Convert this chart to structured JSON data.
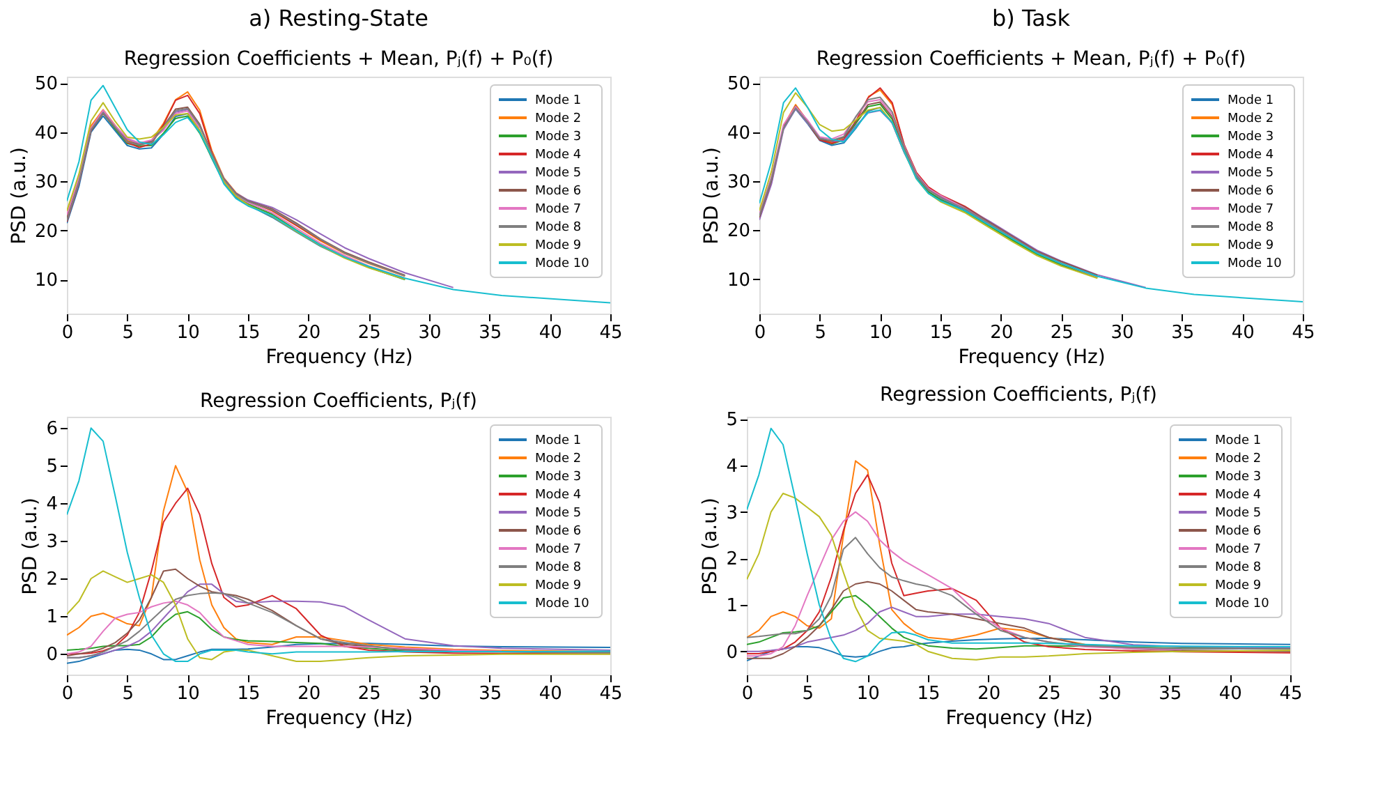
{
  "chart_data": [
    {
      "type": "line",
      "title": "a) Resting-State",
      "subtitle": "Regression Coefficients + Mean, Pⱼ(f) + P₀(f)",
      "xlabel": "Frequency (Hz)",
      "ylabel": "PSD (a.u.)",
      "xlim": [
        0,
        45
      ],
      "ylim": [
        3.1,
        51.3
      ],
      "xticks": [
        0,
        5,
        10,
        15,
        20,
        25,
        30,
        35,
        40,
        45
      ],
      "yticks": [
        10,
        20,
        30,
        40,
        50
      ],
      "grid": false,
      "legend": "top right",
      "x": [
        0,
        1,
        2,
        3,
        4,
        5,
        6,
        7,
        8,
        9,
        10,
        11,
        12,
        13,
        14,
        15,
        17,
        19,
        21,
        23,
        25,
        28,
        32,
        36,
        45
      ],
      "series": [
        {
          "name": "Mode 1",
          "color": "#1f77b4",
          "values": [
            21.5,
            29,
            40,
            43.3,
            40.3,
            37.3,
            36.6,
            36.8,
            39.6,
            43.2,
            43.8,
            40.3,
            34.7,
            29.7,
            26.8,
            25.2,
            22.7,
            19.7,
            16.8,
            14.5,
            12.6,
            10.2,
            null,
            null,
            null
          ]
        },
        {
          "name": "Mode 2",
          "color": "#ff7f0e",
          "values": [
            22.3,
            30.5,
            41.3,
            44.6,
            41.4,
            38.3,
            37.4,
            38.3,
            41.8,
            46.6,
            48.2,
            44.5,
            36.3,
            30.7,
            27.7,
            26.1,
            24,
            21,
            17.9,
            15.3,
            13.3,
            10.7,
            null,
            null,
            null
          ]
        },
        {
          "name": "Mode 3",
          "color": "#2ca02c",
          "values": [
            null,
            null,
            40.7,
            43.9,
            40.7,
            37.7,
            37.2,
            37.3,
            39.8,
            42.8,
            43.3,
            39.8,
            34.8,
            29.8,
            27,
            25.4,
            23.3,
            20.1,
            17.1,
            14.6,
            12.5,
            10,
            null,
            null,
            null
          ]
        },
        {
          "name": "Mode 4",
          "color": "#d62728",
          "values": [
            21.8,
            29.6,
            40.3,
            44.1,
            41.1,
            37.9,
            36.9,
            37.6,
            41.5,
            46.5,
            47.5,
            43.8,
            35.9,
            30.4,
            27.4,
            25.9,
            24.1,
            21.1,
            18.1,
            15.5,
            null,
            null,
            null,
            null,
            null
          ]
        },
        {
          "name": "Mode 5",
          "color": "#9467bd",
          "values": [
            22.1,
            29.8,
            40.6,
            44.2,
            41.2,
            38.6,
            37.7,
            38.2,
            40.7,
            44.1,
            44.6,
            41.2,
            35.7,
            30.6,
            27.6,
            26.2,
            24.7,
            22.2,
            19.3,
            16.5,
            14.3,
            11.4,
            8.4,
            null,
            null
          ]
        },
        {
          "name": "Mode 6",
          "color": "#8c564b",
          "values": [
            22.5,
            30.1,
            40.4,
            43.8,
            40.9,
            38.1,
            37.5,
            38.1,
            41.2,
            44.7,
            45.1,
            41.6,
            35.6,
            30.5,
            27.5,
            26,
            24.4,
            21.5,
            18.3,
            15.6,
            13.6,
            10.9,
            null,
            null,
            null
          ]
        },
        {
          "name": "Mode 7",
          "color": "#e377c2",
          "values": [
            23.2,
            30.8,
            40.8,
            44.5,
            41.3,
            38.8,
            37.8,
            38.4,
            40.4,
            43.8,
            44.3,
            40.8,
            null,
            30,
            27.3,
            25.7,
            23.6,
            20.5,
            17.4,
            14.9,
            12.8,
            10.3,
            null,
            null,
            null
          ]
        },
        {
          "name": "Mode 8",
          "color": "#7f7f7f",
          "values": [
            22,
            29.9,
            40.5,
            44,
            41,
            38,
            37.4,
            37.9,
            41,
            44.4,
            44.8,
            41.4,
            35.5,
            30.4,
            27.4,
            25.9,
            24.2,
            21.3,
            18.2,
            15.4,
            13.4,
            10.8,
            null,
            null,
            null
          ]
        },
        {
          "name": "Mode 9",
          "color": "#bcbd22",
          "values": [
            24,
            31.5,
            42.3,
            46,
            42.2,
            39,
            38.6,
            39,
            41,
            43.5,
            43.8,
            40.4,
            35,
            29.9,
            27,
            25.2,
            22.9,
            19.8,
            16.9,
            14.4,
            12.4,
            10.1,
            null,
            null,
            null
          ]
        },
        {
          "name": "Mode 10",
          "color": "#17becf",
          "values": [
            26,
            34,
            46.5,
            49.5,
            45,
            40.5,
            38,
            37.5,
            39.5,
            42,
            43,
            40,
            35,
            29.5,
            26.5,
            25,
            23,
            20,
            17,
            14.6,
            12.7,
            10.3,
            8,
            6.8,
            5.3
          ]
        }
      ]
    },
    {
      "type": "line",
      "title": "b) Task",
      "subtitle": "Regression Coefficients + Mean, Pⱼ(f) + P₀(f)",
      "xlabel": "Frequency (Hz)",
      "ylabel": "PSD (a.u.)",
      "xlim": [
        0,
        45
      ],
      "ylim": [
        3.0,
        51.3
      ],
      "xticks": [
        0,
        5,
        10,
        15,
        20,
        25,
        30,
        35,
        40,
        45
      ],
      "yticks": [
        10,
        20,
        30,
        40,
        50
      ],
      "grid": false,
      "legend": "top right",
      "x": [
        0,
        1,
        2,
        3,
        4,
        5,
        6,
        7,
        8,
        9,
        10,
        11,
        12,
        13,
        14,
        15,
        17,
        19,
        21,
        23,
        25,
        28,
        32,
        36,
        45
      ],
      "series": [
        {
          "name": "Mode 1",
          "color": "#1f77b4",
          "values": [
            null,
            null,
            40.7,
            44.7,
            41.7,
            38.3,
            37.3,
            37.8,
            40.8,
            44.3,
            45,
            41.8,
            35.8,
            30.8,
            27.8,
            26.3,
            24.1,
            21.1,
            18.1,
            15.2,
            13,
            10.4,
            null,
            null,
            null
          ]
        },
        {
          "name": "Mode 2",
          "color": "#ff7f0e",
          "values": [
            null,
            null,
            41.3,
            45.6,
            42.2,
            38.7,
            37.9,
            38.6,
            null,
            47.2,
            48.6,
            45.6,
            37.2,
            null,
            null,
            null,
            null,
            null,
            null,
            null,
            null,
            null,
            null,
            null,
            null
          ]
        },
        {
          "name": "Mode 3",
          "color": "#2ca02c",
          "values": [
            null,
            null,
            null,
            null,
            null,
            38.6,
            37.6,
            38.4,
            41.8,
            45.2,
            45.7,
            42.6,
            36.1,
            30.9,
            27.9,
            26.2,
            23.9,
            20.9,
            17.9,
            15.1,
            12.9,
            10.4,
            null,
            null,
            null
          ]
        },
        {
          "name": "Mode 4",
          "color": "#d62728",
          "values": [
            22.4,
            29.8,
            40.9,
            44.9,
            41.9,
            38.4,
            37.7,
            38.5,
            42.3,
            47,
            49,
            46,
            37.4,
            31.8,
            28.8,
            27.2,
            24.9,
            21.8,
            18.8,
            null,
            null,
            null,
            null,
            null,
            null
          ]
        },
        {
          "name": "Mode 5",
          "color": "#9467bd",
          "values": [
            22.1,
            29.4,
            40.5,
            44.8,
            41.8,
            38.9,
            38.1,
            38.3,
            41.3,
            43.9,
            44.4,
            41.9,
            35.9,
            31.1,
            28.2,
            26.7,
            24.6,
            21.9,
            18.9,
            15.9,
            13.7,
            10.9,
            8.3,
            null,
            null
          ]
        },
        {
          "name": "Mode 6",
          "color": "#8c564b",
          "values": [
            22.6,
            30.1,
            41.2,
            45.3,
            42.3,
            38.5,
            38.2,
            38.9,
            42.1,
            45.6,
            46.1,
            43.1,
            36.7,
            31.4,
            28.4,
            27,
            24.7,
            21.7,
            18.7,
            15.7,
            13.6,
            10.8,
            null,
            null,
            null
          ]
        },
        {
          "name": "Mode 7",
          "color": "#e377c2",
          "values": [
            23.3,
            30.9,
            41.5,
            45.2,
            42.4,
            39,
            38.6,
            39.6,
            43.1,
            46.2,
            46.6,
            43.6,
            37.1,
            31.5,
            28.5,
            27.1,
            24.5,
            21.4,
            18.4,
            15.4,
            13.2,
            10.5,
            null,
            null,
            null
          ]
        },
        {
          "name": "Mode 8",
          "color": "#7f7f7f",
          "values": [
            22.9,
            30.4,
            40.8,
            44.9,
            42,
            38.7,
            38.3,
            39.1,
            43.2,
            46.6,
            47.1,
            44.1,
            36.9,
            31.3,
            28.3,
            26.6,
            24.4,
            21.4,
            18.4,
            15.5,
            13.3,
            10.6,
            null,
            null,
            null
          ]
        },
        {
          "name": "Mode 9",
          "color": "#bcbd22",
          "values": [
            24,
            32,
            44,
            48,
            45,
            41.5,
            40.2,
            40.5,
            42.5,
            44.5,
            45,
            42,
            36,
            30.5,
            27.5,
            25.8,
            23.6,
            20.6,
            17.6,
            14.8,
            12.7,
            10.2,
            null,
            null,
            null
          ]
        },
        {
          "name": "Mode 10",
          "color": "#17becf",
          "values": [
            25.5,
            34,
            46,
            49,
            45,
            40.5,
            38.5,
            38,
            41,
            44,
            44.5,
            42,
            36,
            30.5,
            27.5,
            26,
            24,
            21.1,
            18.2,
            15.3,
            13.2,
            10.6,
            8.2,
            6.9,
            5.4
          ]
        }
      ]
    },
    {
      "type": "line",
      "title": "Regression Coefficients, Pⱼ(f)",
      "xlabel": "Frequency (Hz)",
      "ylabel": "PSD (a.u.)",
      "xlim": [
        0,
        45
      ],
      "ylim": [
        -0.55,
        6.3
      ],
      "xticks": [
        0,
        5,
        10,
        15,
        20,
        25,
        30,
        35,
        40,
        45
      ],
      "yticks": [
        0,
        1,
        2,
        3,
        4,
        5,
        6
      ],
      "grid": false,
      "legend": "top right",
      "x": [
        0,
        1,
        2,
        3,
        4,
        5,
        6,
        7,
        8,
        9,
        10,
        11,
        12,
        13,
        14,
        15,
        17,
        19,
        21,
        23,
        25,
        28,
        32,
        36,
        45
      ],
      "series": [
        {
          "name": "Mode 1",
          "color": "#1f77b4",
          "values": [
            -0.25,
            -0.2,
            -0.1,
            0,
            0.1,
            0.12,
            0.1,
            0,
            -0.15,
            -0.15,
            -0.05,
            0.05,
            0.12,
            0.12,
            0.12,
            0.13,
            0.18,
            0.25,
            0.27,
            0.28,
            0.28,
            0.25,
            0.21,
            0.19,
            0.17
          ]
        },
        {
          "name": "Mode 2",
          "color": "#ff7f0e",
          "values": [
            0.5,
            0.7,
            1.0,
            1.08,
            0.95,
            0.8,
            0.75,
            1.5,
            3.8,
            5.0,
            4.3,
            2.5,
            1.3,
            0.7,
            0.4,
            0.3,
            0.25,
            0.45,
            0.45,
            0.35,
            0.25,
            0.18,
            0.12,
            0.09,
            0.06
          ]
        },
        {
          "name": "Mode 3",
          "color": "#2ca02c",
          "values": [
            0.1,
            0.12,
            0.15,
            0.2,
            0.22,
            0.22,
            0.25,
            0.45,
            0.8,
            1.05,
            1.12,
            0.95,
            0.65,
            0.45,
            0.38,
            0.35,
            0.33,
            0.3,
            0.28,
            0.2,
            0.15,
            0.08,
            null,
            null,
            null
          ]
        },
        {
          "name": "Mode 4",
          "color": "#d62728",
          "values": [
            0,
            0,
            0.02,
            0.08,
            0.2,
            0.5,
            1.1,
            2.2,
            3.5,
            4.0,
            4.4,
            3.7,
            2.4,
            1.5,
            1.25,
            1.3,
            1.55,
            1.2,
            0.5,
            0.2,
            0.1,
            0.05,
            0.02,
            0.01,
            0
          ]
        },
        {
          "name": "Mode 5",
          "color": "#9467bd",
          "values": [
            -0.1,
            -0.1,
            -0.05,
            0,
            0.1,
            0.2,
            0.35,
            0.6,
            0.95,
            1.3,
            1.65,
            1.85,
            1.85,
            1.6,
            1.4,
            1.35,
            1.4,
            1.4,
            1.38,
            1.25,
            0.9,
            0.4,
            0.22,
            0.15,
            0.1
          ]
        },
        {
          "name": "Mode 6",
          "color": "#8c564b",
          "values": [
            -0.05,
            0,
            0.05,
            0.15,
            0.3,
            0.55,
            0.9,
            1.5,
            2.2,
            2.25,
            2.0,
            1.8,
            1.65,
            1.6,
            1.55,
            1.45,
            1.15,
            0.75,
            0.4,
            0.25,
            0.2,
            0.12,
            0.08,
            0.06,
            0.04
          ]
        },
        {
          "name": "Mode 7",
          "color": "#e377c2",
          "values": [
            0,
            0.05,
            0.2,
            0.6,
            0.95,
            1.05,
            1.1,
            1.25,
            1.35,
            1.4,
            1.3,
            1.1,
            0.75,
            0.45,
            0.35,
            0.25,
            0.2,
            0.2,
            0.2,
            0.2,
            0.18,
            0.15,
            0.1,
            0.07,
            null
          ]
        },
        {
          "name": "Mode 8",
          "color": "#7f7f7f",
          "values": [
            -0.1,
            -0.1,
            -0.05,
            0.05,
            0.2,
            0.35,
            0.6,
            0.9,
            1.2,
            1.45,
            1.55,
            1.6,
            1.62,
            1.6,
            1.5,
            1.35,
            1.1,
            0.75,
            0.4,
            0.3,
            0.22,
            0.1,
            0.06,
            0.05,
            0.03
          ]
        },
        {
          "name": "Mode 9",
          "color": "#bcbd22",
          "values": [
            1.05,
            1.4,
            2.0,
            2.2,
            2.05,
            1.9,
            2.0,
            2.1,
            1.9,
            1.3,
            0.4,
            -0.1,
            -0.15,
            0.05,
            0.1,
            0.1,
            -0.05,
            -0.2,
            -0.2,
            -0.15,
            -0.1,
            -0.05,
            -0.03,
            -0.01,
            -0.01
          ]
        },
        {
          "name": "Mode 10",
          "color": "#17becf",
          "values": [
            3.7,
            4.6,
            6.0,
            5.65,
            4.2,
            2.7,
            1.5,
            0.5,
            0,
            -0.2,
            -0.2,
            0,
            0.1,
            0.1,
            0.1,
            0.05,
            0,
            0.05,
            0.05,
            0.05,
            0.05,
            0.06,
            0.06,
            0.06,
            0.07
          ]
        }
      ]
    },
    {
      "type": "line",
      "title": "Regression Coefficients, Pⱼ(f)",
      "xlabel": "Frequency (Hz)",
      "ylabel": "PSD (a.u.)",
      "xlim": [
        0,
        45
      ],
      "ylim": [
        -0.5,
        5.05
      ],
      "xticks": [
        0,
        5,
        10,
        15,
        20,
        25,
        30,
        35,
        40,
        45
      ],
      "yticks": [
        0,
        1,
        2,
        3,
        4,
        5
      ],
      "grid": false,
      "legend": "top right",
      "x": [
        0,
        1,
        2,
        3,
        4,
        5,
        6,
        7,
        8,
        9,
        10,
        11,
        12,
        13,
        14,
        15,
        17,
        19,
        21,
        23,
        25,
        28,
        32,
        36,
        45
      ],
      "series": [
        {
          "name": "Mode 1",
          "color": "#1f77b4",
          "values": [
            -0.2,
            -0.1,
            0,
            0.05,
            0.1,
            0.1,
            0.08,
            0,
            -0.1,
            -0.12,
            -0.1,
            0,
            0.08,
            0.1,
            0.15,
            0.18,
            0.22,
            0.25,
            0.27,
            0.28,
            0.28,
            0.25,
            0.2,
            0.17,
            0.15
          ]
        },
        {
          "name": "Mode 2",
          "color": "#ff7f0e",
          "values": [
            0.3,
            0.45,
            0.75,
            0.85,
            0.75,
            0.55,
            0.5,
            0.7,
            2.5,
            4.1,
            3.9,
            2.3,
            0.9,
            0.6,
            0.4,
            0.3,
            0.25,
            0.35,
            0.5,
            0.45,
            0.3,
            0.15,
            0.08,
            null,
            null
          ]
        },
        {
          "name": "Mode 3",
          "color": "#2ca02c",
          "values": [
            0.15,
            0.2,
            0.3,
            0.4,
            0.42,
            0.45,
            0.55,
            0.85,
            1.15,
            1.2,
            1.0,
            0.75,
            0.5,
            0.3,
            0.2,
            0.12,
            0.07,
            0.05,
            0.08,
            0.12,
            0.12,
            0.11,
            0.09,
            0.07,
            0.06
          ]
        },
        {
          "name": "Mode 4",
          "color": "#d62728",
          "values": [
            -0.05,
            -0.05,
            0,
            0.05,
            0.2,
            0.45,
            0.85,
            1.6,
            2.6,
            3.4,
            3.8,
            3.2,
            1.9,
            1.2,
            1.25,
            1.3,
            1.35,
            1.1,
            0.5,
            0.2,
            0.1,
            0.04,
            0.01,
            -0.01,
            -0.03
          ]
        },
        {
          "name": "Mode 5",
          "color": "#9467bd",
          "values": [
            0,
            0,
            0.02,
            0.05,
            0.1,
            0.2,
            0.25,
            0.3,
            0.35,
            0.45,
            0.6,
            0.85,
            0.95,
            0.85,
            0.75,
            0.75,
            0.8,
            0.8,
            0.75,
            0.7,
            0.6,
            0.3,
            0.14,
            0.1,
            0.08
          ]
        },
        {
          "name": "Mode 6",
          "color": "#8c564b",
          "values": [
            -0.15,
            -0.15,
            -0.15,
            -0.05,
            0.1,
            0.3,
            0.55,
            0.9,
            1.3,
            1.45,
            1.5,
            1.45,
            1.3,
            1.1,
            0.9,
            0.85,
            0.8,
            0.7,
            0.6,
            0.5,
            0.3,
            0.13,
            0.05,
            0.02,
            0
          ]
        },
        {
          "name": "Mode 7",
          "color": "#e377c2",
          "values": [
            -0.1,
            -0.1,
            -0.05,
            0.1,
            0.55,
            1.2,
            1.8,
            2.4,
            2.8,
            3.0,
            2.8,
            2.4,
            2.15,
            1.95,
            1.8,
            1.65,
            1.35,
            0.85,
            0.5,
            0.3,
            0.2,
            0.1,
            0.06,
            0.04,
            null
          ]
        },
        {
          "name": "Mode 8",
          "color": "#7f7f7f",
          "values": [
            0.3,
            0.32,
            0.35,
            0.38,
            0.38,
            0.45,
            0.7,
            1.2,
            2.2,
            2.45,
            2.1,
            1.8,
            1.6,
            1.52,
            1.45,
            1.4,
            1.2,
            0.8,
            0.45,
            0.3,
            0.2,
            0.12,
            0.08,
            0.06,
            0.05
          ]
        },
        {
          "name": "Mode 9",
          "color": "#bcbd22",
          "values": [
            1.55,
            2.1,
            3.0,
            3.4,
            3.3,
            3.1,
            2.9,
            2.5,
            1.7,
            0.95,
            0.45,
            0.28,
            0.25,
            0.22,
            0.15,
            0,
            -0.15,
            -0.18,
            -0.12,
            -0.12,
            -0.1,
            -0.05,
            -0.02,
            0,
            0.02
          ]
        },
        {
          "name": "Mode 10",
          "color": "#17becf",
          "values": [
            3.05,
            3.8,
            4.8,
            4.45,
            3.3,
            2.1,
            1.0,
            0.25,
            -0.15,
            -0.22,
            -0.1,
            0.2,
            0.4,
            0.42,
            0.35,
            0.25,
            0.18,
            0.18,
            0.18,
            0.18,
            0.17,
            0.15,
            0.12,
            0.11,
            0.1
          ]
        }
      ]
    }
  ]
}
